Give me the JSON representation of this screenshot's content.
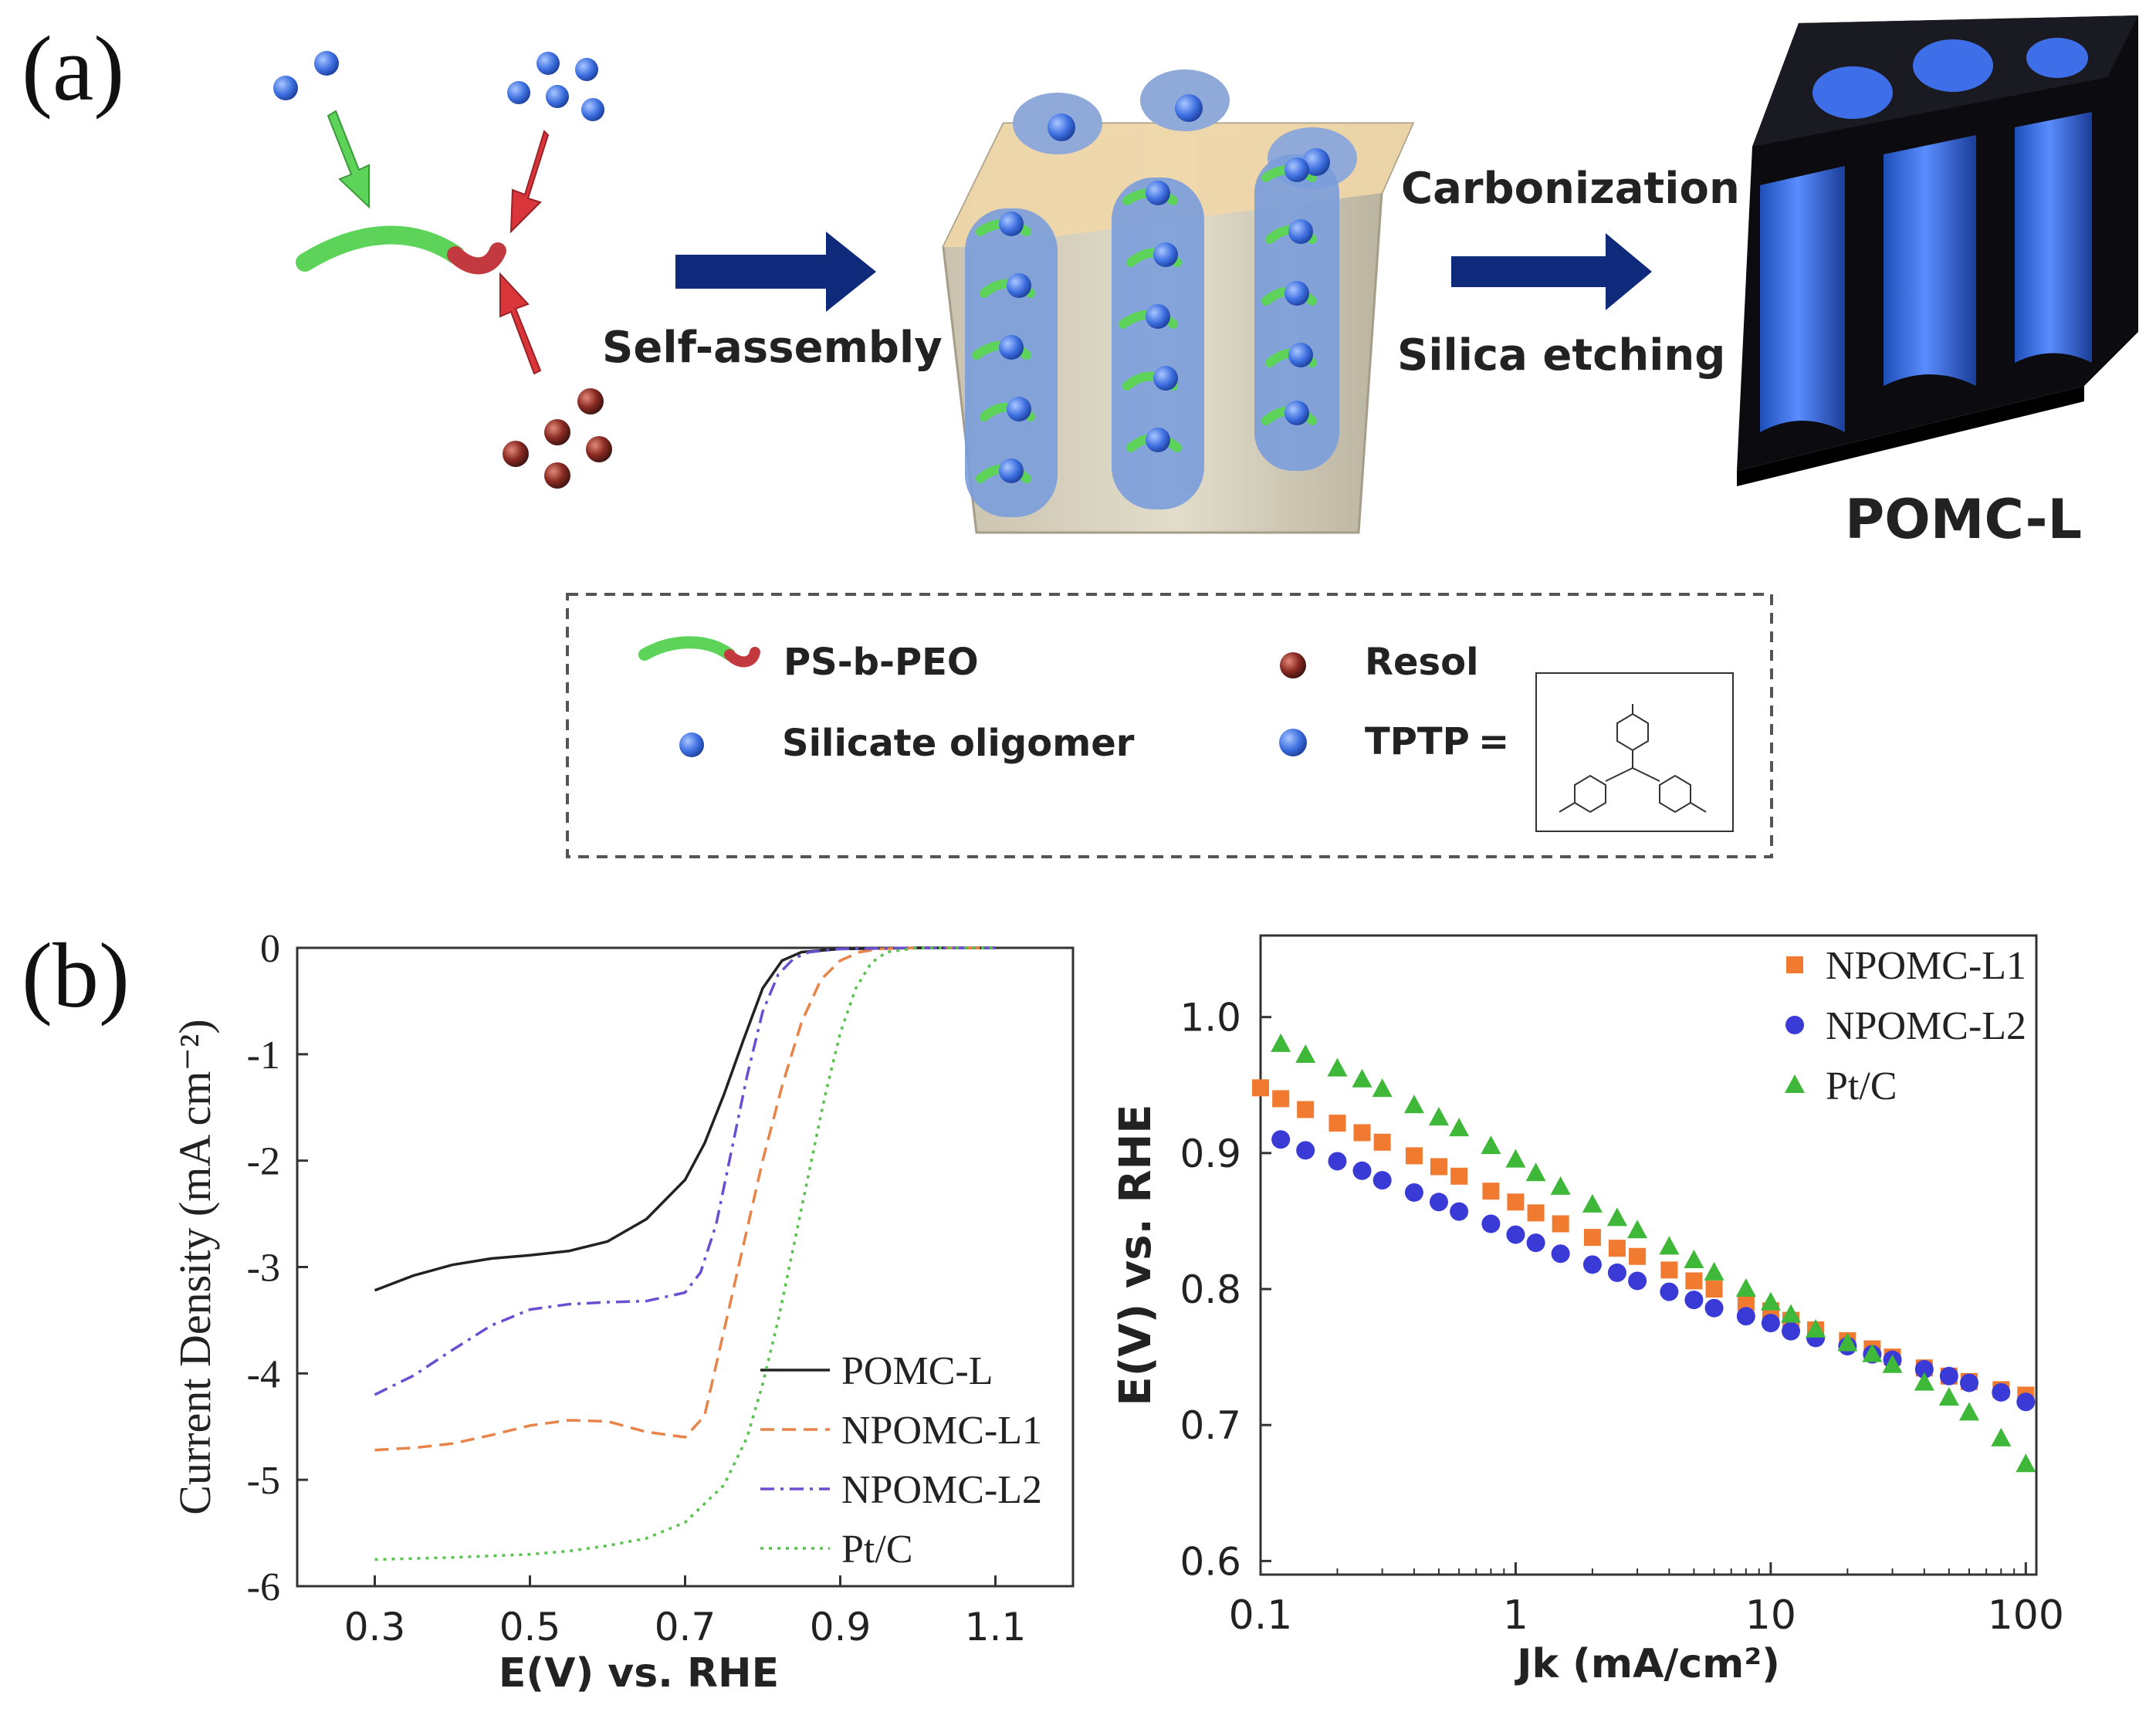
{
  "panel_a": {
    "letter": "(a)",
    "step1_label": "Self-assembly",
    "step2_label_top": "Carbonization",
    "step2_label_bottom": "Silica etching",
    "product_label": "POMC-L",
    "legend": {
      "ps_b_peo": "PS-b-PEO",
      "silicate": "Silicate oligomer",
      "resol": "Resol",
      "tptp": "TPTP",
      "equals": "="
    },
    "colors": {
      "green": "#5ed35a",
      "red": "#d8363a",
      "navy": "#0f2a7a",
      "blue": "#4a7ff0",
      "tan": "#d9c49a"
    }
  },
  "panel_b": {
    "letter": "(b)"
  },
  "chart_data": [
    {
      "type": "line",
      "xlabel": "E(V) vs. RHE",
      "ylabel": "Current Density (mA cm⁻²)",
      "xlim": [
        0.2,
        1.2
      ],
      "ylim": [
        -6,
        0
      ],
      "xticks": [
        "0.3",
        "0.5",
        "0.7",
        "0.9",
        "1.1"
      ],
      "yticks": [
        "0",
        "-1",
        "-2",
        "-3",
        "-4",
        "-5",
        "-6"
      ],
      "legend_position": "bottom-right",
      "series": [
        {
          "name": "POMC-L",
          "color": "#222222",
          "dash": "solid",
          "x": [
            0.3,
            0.35,
            0.4,
            0.45,
            0.5,
            0.55,
            0.6,
            0.65,
            0.7,
            0.725,
            0.75,
            0.775,
            0.8,
            0.825,
            0.85,
            0.9,
            1.0,
            1.1
          ],
          "y": [
            -3.22,
            -3.08,
            -2.98,
            -2.92,
            -2.89,
            -2.85,
            -2.76,
            -2.55,
            -2.18,
            -1.84,
            -1.38,
            -0.87,
            -0.38,
            -0.12,
            -0.04,
            -0.01,
            0.0,
            0.0
          ]
        },
        {
          "name": "NPOMC-L1",
          "color": "#e8834a",
          "dash": "dashed",
          "x": [
            0.3,
            0.35,
            0.4,
            0.45,
            0.5,
            0.55,
            0.6,
            0.65,
            0.7,
            0.725,
            0.75,
            0.775,
            0.8,
            0.825,
            0.85,
            0.875,
            0.9,
            0.925,
            0.95,
            1.0,
            1.1
          ],
          "y": [
            -4.72,
            -4.7,
            -4.66,
            -4.58,
            -4.49,
            -4.44,
            -4.45,
            -4.55,
            -4.6,
            -4.4,
            -3.6,
            -2.8,
            -2.0,
            -1.3,
            -0.7,
            -0.3,
            -0.12,
            -0.04,
            -0.01,
            0.0,
            0.0
          ]
        },
        {
          "name": "NPOMC-L2",
          "color": "#6a4fd0",
          "dash": "dashdot",
          "x": [
            0.3,
            0.35,
            0.4,
            0.45,
            0.5,
            0.55,
            0.6,
            0.65,
            0.7,
            0.72,
            0.74,
            0.76,
            0.78,
            0.8,
            0.82,
            0.84,
            0.86,
            0.9,
            1.0,
            1.1
          ],
          "y": [
            -4.2,
            -4.02,
            -3.78,
            -3.55,
            -3.4,
            -3.35,
            -3.33,
            -3.32,
            -3.24,
            -3.05,
            -2.6,
            -1.9,
            -1.2,
            -0.6,
            -0.25,
            -0.1,
            -0.04,
            -0.01,
            0.0,
            0.0
          ]
        },
        {
          "name": "Pt/C",
          "color": "#58c24e",
          "dash": "dotted",
          "x": [
            0.3,
            0.4,
            0.5,
            0.55,
            0.6,
            0.65,
            0.7,
            0.75,
            0.78,
            0.8,
            0.82,
            0.84,
            0.86,
            0.88,
            0.9,
            0.92,
            0.94,
            0.96,
            1.0,
            1.1
          ],
          "y": [
            -5.75,
            -5.73,
            -5.7,
            -5.67,
            -5.62,
            -5.55,
            -5.4,
            -5.05,
            -4.6,
            -4.1,
            -3.5,
            -2.8,
            -2.1,
            -1.4,
            -0.8,
            -0.38,
            -0.14,
            -0.04,
            0.0,
            0.0
          ]
        }
      ]
    },
    {
      "type": "scatter",
      "xlabel": "Jk (mA/cm²)",
      "ylabel": "E(V) vs. RHE",
      "x_scale": "log",
      "xlim": [
        0.1,
        110
      ],
      "ylim": [
        0.59,
        1.06
      ],
      "xticks": [
        "0.1",
        "1",
        "10",
        "100"
      ],
      "yticks": [
        "0.6",
        "0.7",
        "0.8",
        "0.9",
        "1.0"
      ],
      "legend_position": "top-right",
      "series": [
        {
          "name": "NPOMC-L1",
          "color": "#f07a30",
          "marker": "square",
          "x": [
            0.1,
            0.12,
            0.15,
            0.2,
            0.25,
            0.3,
            0.4,
            0.5,
            0.6,
            0.8,
            1,
            1.2,
            1.5,
            2,
            2.5,
            3,
            4,
            5,
            6,
            8,
            10,
            12,
            15,
            20,
            25,
            30,
            40,
            50,
            60,
            80,
            100
          ],
          "y": [
            0.948,
            0.94,
            0.932,
            0.922,
            0.915,
            0.908,
            0.898,
            0.89,
            0.883,
            0.872,
            0.864,
            0.856,
            0.848,
            0.838,
            0.83,
            0.824,
            0.814,
            0.806,
            0.8,
            0.79,
            0.784,
            0.777,
            0.77,
            0.762,
            0.756,
            0.75,
            0.742,
            0.736,
            0.732,
            0.726,
            0.722
          ]
        },
        {
          "name": "NPOMC-L2",
          "color": "#3a3ad6",
          "marker": "circle",
          "x": [
            0.12,
            0.15,
            0.2,
            0.25,
            0.3,
            0.4,
            0.5,
            0.6,
            0.8,
            1,
            1.2,
            1.5,
            2,
            2.5,
            3,
            4,
            5,
            6,
            8,
            10,
            12,
            15,
            20,
            25,
            30,
            40,
            50,
            60,
            80,
            100
          ],
          "y": [
            0.91,
            0.902,
            0.894,
            0.887,
            0.88,
            0.871,
            0.864,
            0.857,
            0.848,
            0.84,
            0.834,
            0.826,
            0.818,
            0.812,
            0.806,
            0.798,
            0.792,
            0.786,
            0.78,
            0.775,
            0.769,
            0.764,
            0.758,
            0.752,
            0.748,
            0.741,
            0.736,
            0.731,
            0.724,
            0.717
          ]
        },
        {
          "name": "Pt/C",
          "color": "#3fb83a",
          "marker": "triangle",
          "x": [
            0.12,
            0.15,
            0.2,
            0.25,
            0.3,
            0.4,
            0.5,
            0.6,
            0.8,
            1,
            1.2,
            1.5,
            2,
            2.5,
            3,
            4,
            5,
            6,
            8,
            10,
            12,
            15,
            20,
            25,
            30,
            40,
            50,
            60,
            80,
            100
          ],
          "y": [
            0.98,
            0.972,
            0.962,
            0.954,
            0.947,
            0.935,
            0.926,
            0.918,
            0.905,
            0.895,
            0.885,
            0.875,
            0.862,
            0.852,
            0.843,
            0.831,
            0.821,
            0.812,
            0.8,
            0.79,
            0.781,
            0.77,
            0.76,
            0.752,
            0.744,
            0.731,
            0.72,
            0.709,
            0.69,
            0.671
          ]
        }
      ]
    }
  ]
}
